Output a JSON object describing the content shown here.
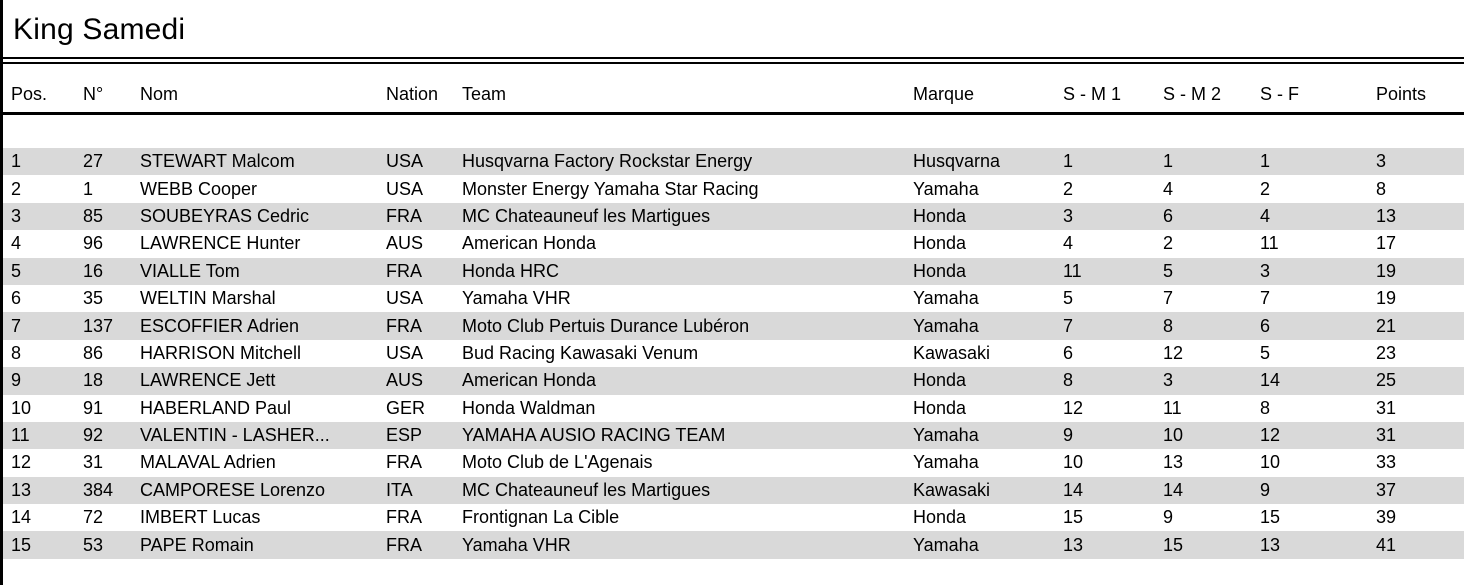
{
  "page": {
    "title": "King Samedi"
  },
  "colors": {
    "stripe_gray": "#d9d9d9",
    "rule_black": "#000000",
    "text": "#000000",
    "background": "#ffffff"
  },
  "table": {
    "columns": [
      "Pos.",
      "N°",
      "Nom",
      "Nation",
      "Team",
      "Marque",
      "S - M 1",
      "S - M 2",
      "S - F",
      "Points"
    ],
    "rows": [
      {
        "pos": "1",
        "num": "27",
        "nom": "STEWART Malcom",
        "nation": "USA",
        "team": "Husqvarna Factory Rockstar Energy",
        "marque": "Husqvarna",
        "sm1": "1",
        "sm2": "1",
        "sf": "1",
        "points": "3"
      },
      {
        "pos": "2",
        "num": "1",
        "nom": "WEBB Cooper",
        "nation": "USA",
        "team": "Monster Energy Yamaha Star Racing",
        "marque": "Yamaha",
        "sm1": "2",
        "sm2": "4",
        "sf": "2",
        "points": "8"
      },
      {
        "pos": "3",
        "num": "85",
        "nom": "SOUBEYRAS Cedric",
        "nation": "FRA",
        "team": "MC Chateauneuf les Martigues",
        "marque": "Honda",
        "sm1": "3",
        "sm2": "6",
        "sf": "4",
        "points": "13"
      },
      {
        "pos": "4",
        "num": "96",
        "nom": "LAWRENCE Hunter",
        "nation": "AUS",
        "team": "American Honda",
        "marque": "Honda",
        "sm1": "4",
        "sm2": "2",
        "sf": "11",
        "points": "17"
      },
      {
        "pos": "5",
        "num": "16",
        "nom": "VIALLE Tom",
        "nation": "FRA",
        "team": "Honda HRC",
        "marque": "Honda",
        "sm1": "11",
        "sm2": "5",
        "sf": "3",
        "points": "19"
      },
      {
        "pos": "6",
        "num": "35",
        "nom": "WELTIN Marshal",
        "nation": "USA",
        "team": "Yamaha VHR",
        "marque": "Yamaha",
        "sm1": "5",
        "sm2": "7",
        "sf": "7",
        "points": "19"
      },
      {
        "pos": "7",
        "num": "137",
        "nom": "ESCOFFIER Adrien",
        "nation": "FRA",
        "team": "Moto Club Pertuis Durance Lubéron",
        "marque": "Yamaha",
        "sm1": "7",
        "sm2": "8",
        "sf": "6",
        "points": "21"
      },
      {
        "pos": "8",
        "num": "86",
        "nom": "HARRISON Mitchell",
        "nation": "USA",
        "team": "Bud Racing Kawasaki Venum",
        "marque": "Kawasaki",
        "sm1": "6",
        "sm2": "12",
        "sf": "5",
        "points": "23"
      },
      {
        "pos": "9",
        "num": "18",
        "nom": "LAWRENCE Jett",
        "nation": "AUS",
        "team": "American Honda",
        "marque": "Honda",
        "sm1": "8",
        "sm2": "3",
        "sf": "14",
        "points": "25"
      },
      {
        "pos": "10",
        "num": "91",
        "nom": "HABERLAND Paul",
        "nation": "GER",
        "team": "Honda Waldman",
        "marque": "Honda",
        "sm1": "12",
        "sm2": "11",
        "sf": "8",
        "points": "31"
      },
      {
        "pos": "11",
        "num": "92",
        "nom": "VALENTIN - LASHER...",
        "nation": "ESP",
        "team": "YAMAHA AUSIO RACING TEAM",
        "marque": "Yamaha",
        "sm1": "9",
        "sm2": "10",
        "sf": "12",
        "points": "31"
      },
      {
        "pos": "12",
        "num": "31",
        "nom": "MALAVAL Adrien",
        "nation": "FRA",
        "team": "Moto Club de L'Agenais",
        "marque": "Yamaha",
        "sm1": "10",
        "sm2": "13",
        "sf": "10",
        "points": "33"
      },
      {
        "pos": "13",
        "num": "384",
        "nom": "CAMPORESE Lorenzo",
        "nation": "ITA",
        "team": "MC Chateauneuf les Martigues",
        "marque": "Kawasaki",
        "sm1": "14",
        "sm2": "14",
        "sf": "9",
        "points": "37"
      },
      {
        "pos": "14",
        "num": "72",
        "nom": "IMBERT Lucas",
        "nation": "FRA",
        "team": "Frontignan La Cible",
        "marque": "Honda",
        "sm1": "15",
        "sm2": "9",
        "sf": "15",
        "points": "39"
      },
      {
        "pos": "15",
        "num": "53",
        "nom": "PAPE Romain",
        "nation": "FRA",
        "team": "Yamaha VHR",
        "marque": "Yamaha",
        "sm1": "13",
        "sm2": "15",
        "sf": "13",
        "points": "41"
      }
    ]
  }
}
